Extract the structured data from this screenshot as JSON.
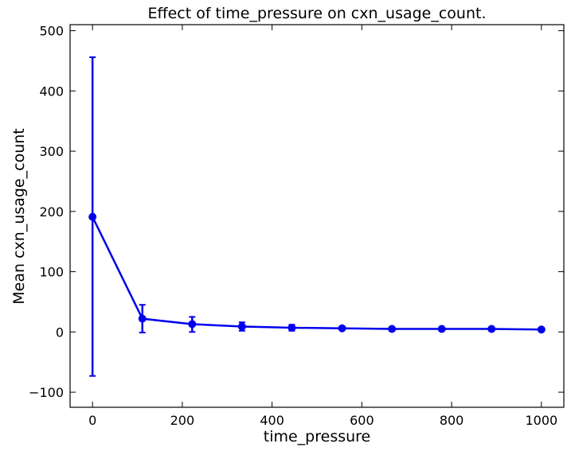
{
  "chart_data": {
    "type": "line",
    "title": "Effect of time_pressure on cxn_usage_count.",
    "xlabel": "time_pressure",
    "ylabel": "Mean cxn_usage_count",
    "xlim": [
      -50,
      1050
    ],
    "ylim": [
      -125,
      510
    ],
    "xticks": [
      0,
      200,
      400,
      600,
      800,
      1000
    ],
    "xtick_labels": [
      "0",
      "200",
      "400",
      "600",
      "800",
      "1000"
    ],
    "yticks": [
      -100,
      0,
      100,
      200,
      300,
      400,
      500
    ],
    "ytick_labels": [
      "−100",
      "0",
      "100",
      "200",
      "300",
      "400",
      "500"
    ],
    "grid": false,
    "legend": "none",
    "series": [
      {
        "color": "#0000ee",
        "x": [
          0,
          111,
          222,
          333,
          444,
          556,
          667,
          778,
          889,
          1000
        ],
        "y": [
          191,
          22,
          13,
          9,
          7,
          6,
          5,
          5,
          5,
          4
        ],
        "yerr_low": [
          -73,
          -1,
          0,
          2,
          2,
          4,
          4,
          4,
          4,
          3
        ],
        "yerr_high": [
          456,
          45,
          25,
          16,
          12,
          8,
          6,
          6,
          6,
          5
        ]
      }
    ]
  }
}
